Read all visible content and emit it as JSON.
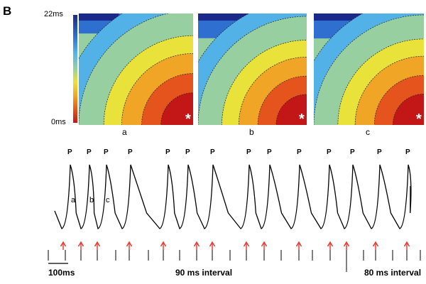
{
  "panel_label": "B",
  "colorbar": {
    "max_label": "22ms",
    "min_label": "0ms",
    "colors": [
      "#1b2a8a",
      "#2f6fd0",
      "#52b2e8",
      "#98cfa0",
      "#e8e23a",
      "#f0a526",
      "#e5541c",
      "#c31616"
    ]
  },
  "maps": [
    {
      "label": "a",
      "marker": "*"
    },
    {
      "label": "b",
      "marker": "*"
    },
    {
      "label": "c",
      "marker": "*"
    }
  ],
  "trace": {
    "peak_label": "P",
    "wave_labels": [
      "a",
      "b",
      "c"
    ],
    "arrow_color": "#e8312a"
  },
  "bottom": {
    "scale_bar_label": "100ms",
    "interval_1": "90 ms interval",
    "interval_2": "80 ms interval"
  }
}
